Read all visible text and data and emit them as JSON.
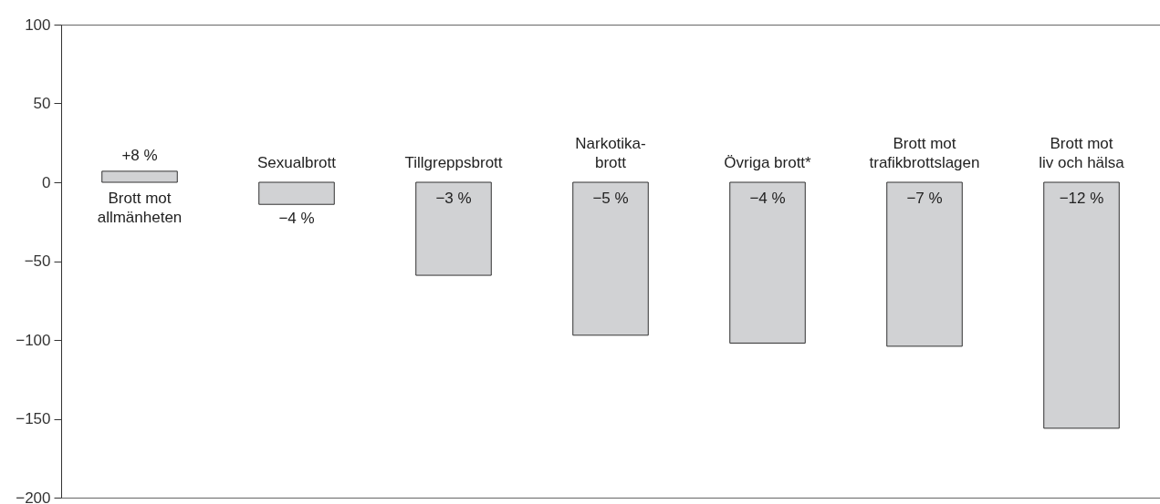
{
  "chart_data": {
    "type": "bar",
    "categories": [
      "Brott mot\nallmänheten",
      "Sexualbrott",
      "Tillgreppsbrott",
      "Narkotika-\nbrott",
      "Övriga brott*",
      "Brott mot\ntrafikbrottslagen",
      "Brott mot\nliv och hälsa"
    ],
    "values": [
      7,
      -14,
      -59,
      -97,
      -102,
      -104,
      -156
    ],
    "annotations": [
      "+8 %",
      "−4 %",
      "−3 %",
      "−5 %",
      "−4 %",
      "−7 %",
      "−12 %"
    ],
    "color": "#d1d2d4",
    "ylim": [
      -200,
      100
    ],
    "yticks": [
      100,
      50,
      0,
      -50,
      -100,
      -150,
      -200
    ],
    "grid": false
  }
}
